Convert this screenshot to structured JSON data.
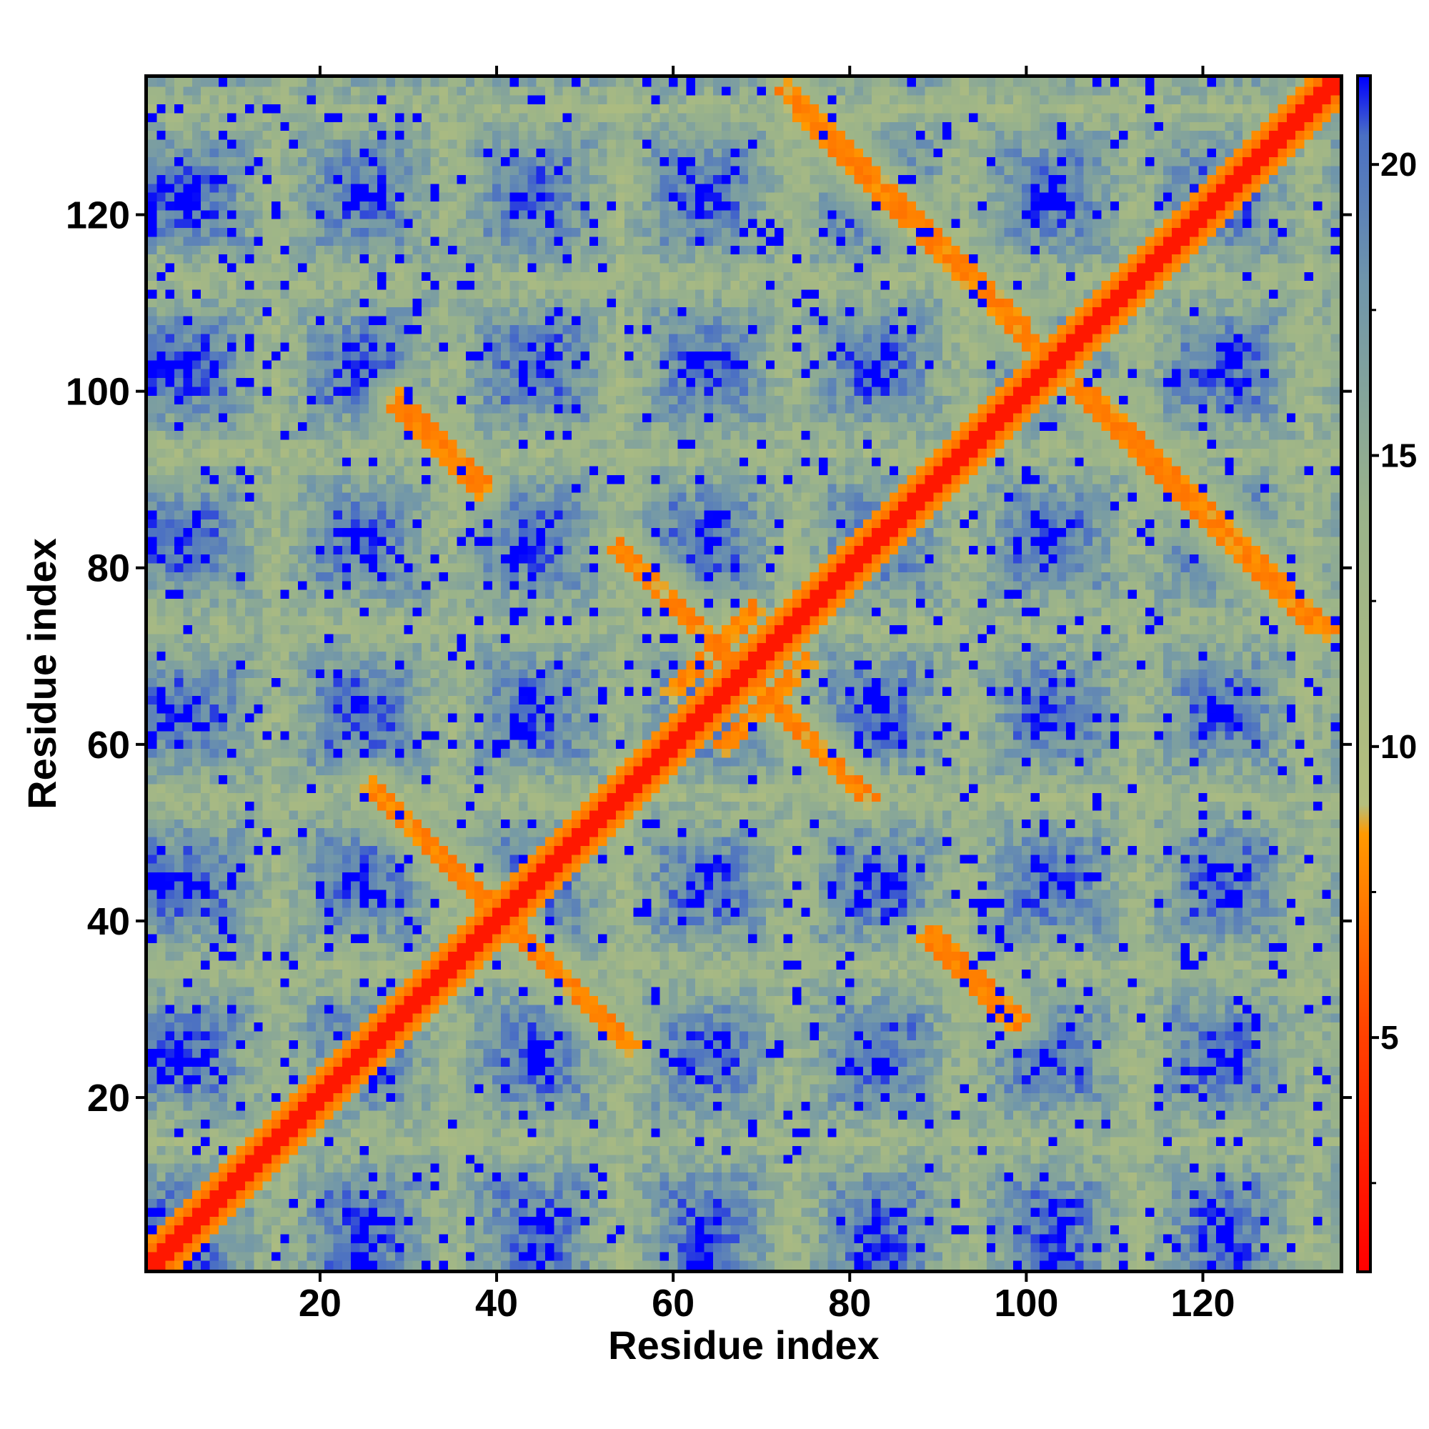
{
  "chart_data": {
    "type": "heatmap",
    "title": "",
    "xlabel": "Residue index",
    "ylabel": "Residue index",
    "xlim": [
      1,
      135
    ],
    "ylim": [
      1,
      135
    ],
    "matrix_size": 135,
    "x_ticks": [
      20,
      40,
      60,
      80,
      100,
      120
    ],
    "y_ticks": [
      20,
      40,
      60,
      80,
      100,
      120
    ],
    "colorbar": {
      "range": [
        1,
        21.5
      ],
      "ticks": [
        5,
        10,
        15,
        20
      ],
      "minor_ticks": [
        2.5,
        7.5,
        12.5,
        17.5
      ],
      "stops": [
        {
          "value": 1,
          "color": "#ff0000"
        },
        {
          "value": 5,
          "color": "#ff4000"
        },
        {
          "value": 8.5,
          "color": "#ff9900"
        },
        {
          "value": 9,
          "color": "#b4bf7d"
        },
        {
          "value": 14,
          "color": "#9ab38a"
        },
        {
          "value": 18,
          "color": "#6f95ab"
        },
        {
          "value": 20.5,
          "color": "#4a6fc4"
        },
        {
          "value": 21.5,
          "color": "#0000ff"
        }
      ]
    },
    "features": [
      {
        "type": "diagonal_band",
        "from": 1,
        "to": 135,
        "width": 3
      },
      {
        "type": "antiparallel_contact",
        "i_start": 26,
        "j_start": 55,
        "length": 22
      },
      {
        "type": "antiparallel_contact",
        "i_start": 29,
        "j_start": 99,
        "length": 10
      },
      {
        "type": "antiparallel_contact",
        "i_start": 54,
        "j_start": 82,
        "length": 15
      },
      {
        "type": "antiparallel_contact",
        "i_start": 73,
        "j_start": 134,
        "length": 10
      },
      {
        "type": "antiparallel_contact",
        "i_start": 84,
        "j_start": 123,
        "length": 16
      },
      {
        "type": "antiparallel_contact",
        "i_start": 89,
        "j_start": 38,
        "length": 10
      },
      {
        "type": "antiparallel_contact",
        "i_start": 105,
        "j_start": 101,
        "length": 28
      },
      {
        "type": "parallel_contact",
        "i_start": 60,
        "j_start": 66,
        "length": 10
      }
    ]
  }
}
